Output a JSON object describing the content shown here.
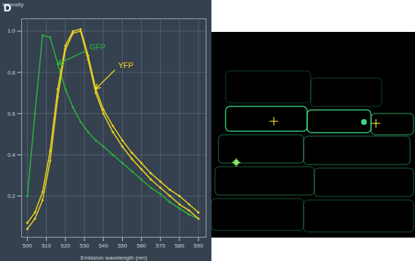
{
  "chart_data": {
    "type": "line",
    "title": "D",
    "y_label": "Intensity",
    "x_label": "Emission wavelength (nm)",
    "x": [
      500,
      504,
      508,
      512,
      516,
      520,
      524,
      528,
      532,
      536,
      540,
      545,
      550,
      555,
      560,
      565,
      570,
      575,
      580,
      585,
      590
    ],
    "series": [
      {
        "name": "GFP",
        "color": "#2bb03a",
        "values": [
          0.2,
          0.6,
          0.98,
          0.97,
          0.84,
          0.72,
          0.63,
          0.56,
          0.51,
          0.47,
          0.44,
          0.4,
          0.36,
          0.32,
          0.28,
          0.24,
          0.21,
          0.17,
          0.14,
          0.11,
          0.09
        ]
      },
      {
        "name": "YFP",
        "color": "#e8d020",
        "values": [
          0.07,
          0.12,
          0.22,
          0.42,
          0.72,
          0.93,
          1.0,
          1.01,
          0.88,
          0.72,
          0.62,
          0.54,
          0.47,
          0.41,
          0.36,
          0.31,
          0.27,
          0.23,
          0.2,
          0.16,
          0.12
        ]
      },
      {
        "name": "YFP",
        "color": "#e8d020",
        "values": [
          0.04,
          0.09,
          0.18,
          0.37,
          0.68,
          0.91,
          0.99,
          1.0,
          0.86,
          0.7,
          0.6,
          0.51,
          0.44,
          0.38,
          0.33,
          0.28,
          0.24,
          0.2,
          0.16,
          0.13,
          0.09
        ]
      }
    ],
    "xlim": [
      497,
      594
    ],
    "ylim": [
      0,
      1.06
    ],
    "xticks": [
      500,
      510,
      520,
      530,
      540,
      550,
      560,
      570,
      580,
      590
    ],
    "yticks": [
      0.2,
      0.4,
      0.6,
      0.8,
      {
        "value": 1,
        "label": "1.0"
      }
    ],
    "grid": true,
    "marker": "circle"
  }
}
